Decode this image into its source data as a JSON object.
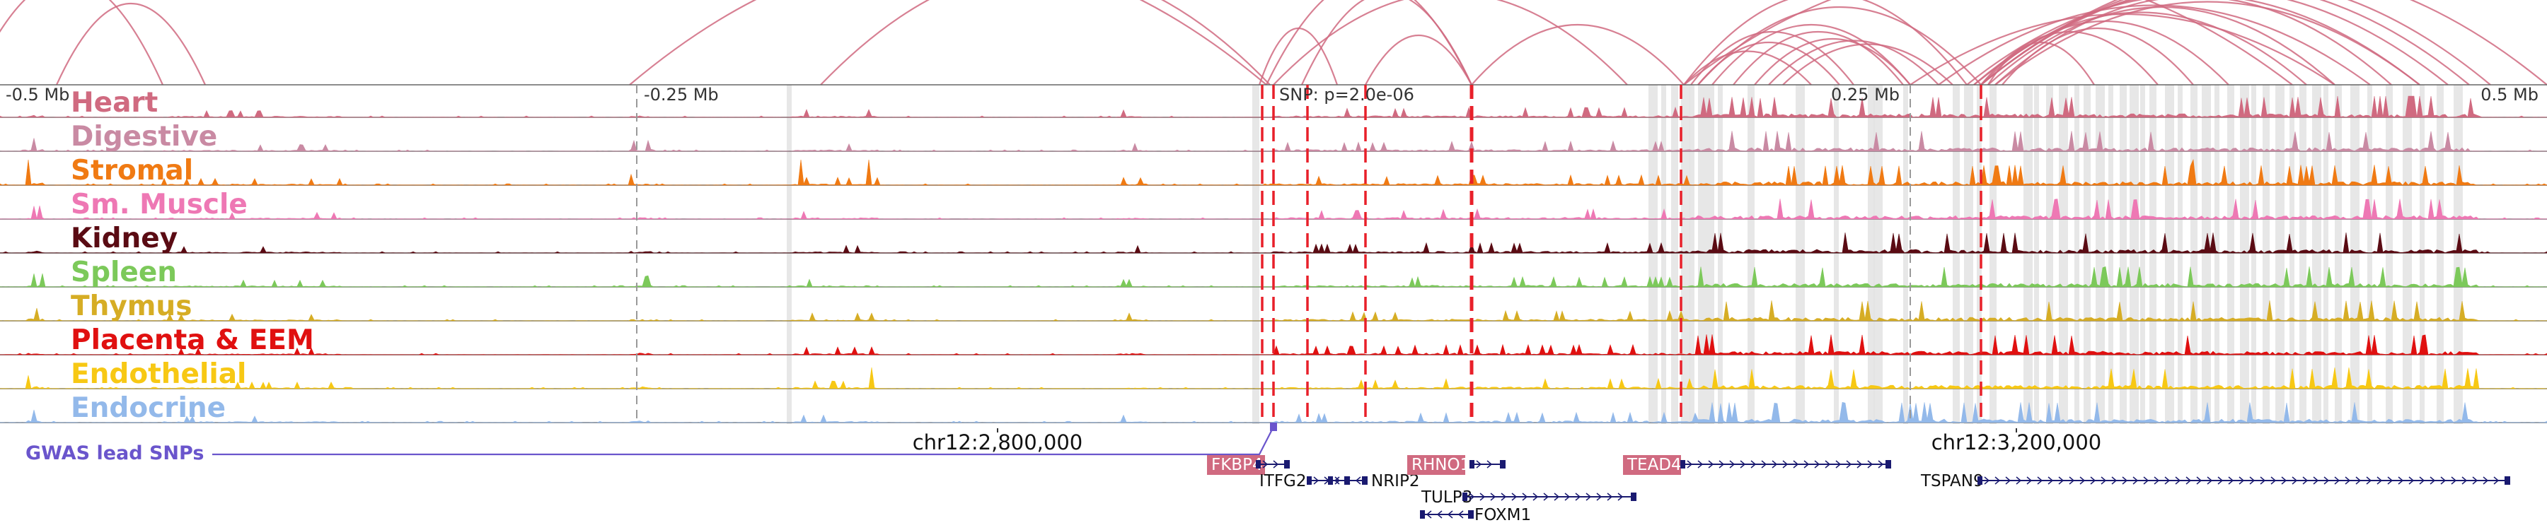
{
  "scale_labels": [
    "-0.5 Mb",
    "-0.25 Mb",
    "0.25 Mb",
    "0.5 Mb"
  ],
  "snp_label": "SNP: p=2.0e-06",
  "tracks": [
    {
      "label": "Heart",
      "color": "#d06a80"
    },
    {
      "label": "Digestive",
      "color": "#c98aa3"
    },
    {
      "label": "Stromal",
      "color": "#f07a13"
    },
    {
      "label": "Sm. Muscle",
      "color": "#ee78b4"
    },
    {
      "label": "Kidney",
      "color": "#5a0b13"
    },
    {
      "label": "Spleen",
      "color": "#7cc95a"
    },
    {
      "label": "Thymus",
      "color": "#d6ad25"
    },
    {
      "label": "Placenta & EEM",
      "color": "#e01010"
    },
    {
      "label": "Endothelial",
      "color": "#f7c814"
    },
    {
      "label": "Endocrine",
      "color": "#93b9ea"
    }
  ],
  "gwas_label": "GWAS lead SNPs",
  "coordinate_labels": [
    "chr12:2,800,000",
    "chr12:3,200,000"
  ],
  "genes": [
    {
      "name": "FKBP4",
      "highlighted": true
    },
    {
      "name": "ITFG2",
      "highlighted": false
    },
    {
      "name": "NRIP2",
      "highlighted": false
    },
    {
      "name": "RHNO1",
      "highlighted": true
    },
    {
      "name": "TULP3",
      "highlighted": false
    },
    {
      "name": "FOXM1",
      "highlighted": false
    },
    {
      "name": "TEAD4",
      "highlighted": true
    },
    {
      "name": "TSPAN9",
      "highlighted": false
    }
  ],
  "colors": {
    "loop": "#d06a80",
    "snp_line": "#e8202a",
    "gwas": "#6a55cc",
    "gene_highlight": "#d06a80",
    "gene_body": "#1a1a70",
    "peak_highlight": "#e3e3e3"
  }
}
